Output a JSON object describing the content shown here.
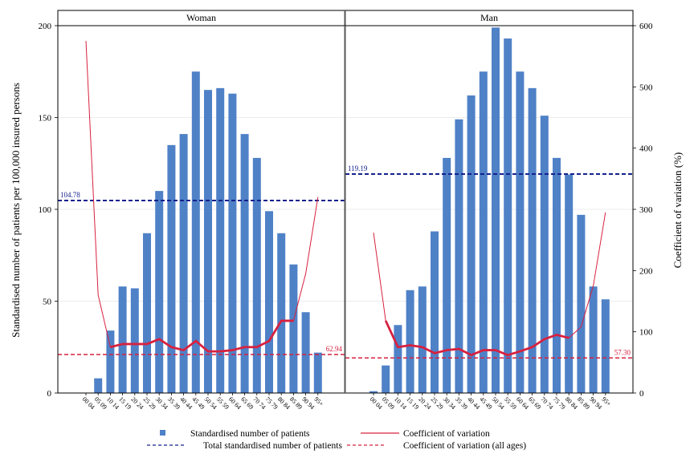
{
  "chart_data": {
    "type": "bar",
    "y_left": {
      "label": "Standardised number of patients per 100,000 insured persons",
      "lim": [
        0,
        200
      ],
      "ticks": [
        0,
        50,
        100,
        150,
        200
      ]
    },
    "y_right": {
      "label": "Coefficient of variation (%)",
      "lim": [
        0,
        600
      ],
      "ticks": [
        0,
        100,
        200,
        300,
        400,
        500,
        600
      ]
    },
    "categories": [
      "00-04",
      "05-09",
      "10-14",
      "15-19",
      "20-24",
      "25-29",
      "30-34",
      "35-39",
      "40-44",
      "45-49",
      "50-54",
      "55-59",
      "60-64",
      "65-69",
      "70-74",
      "75-79",
      "80-84",
      "85-89",
      "90-94",
      "95+"
    ],
    "panels": [
      {
        "name": "Woman",
        "bars": [
          0,
          8,
          34,
          58,
          57,
          87,
          110,
          135,
          141,
          175,
          165,
          166,
          163,
          141,
          128,
          99,
          87,
          70,
          44,
          22
        ],
        "cv_thin": [
          575,
          160,
          75,
          80,
          80,
          80,
          88,
          75,
          70,
          85,
          68,
          68,
          70,
          75,
          75,
          85,
          118,
          118,
          195,
          320
        ],
        "cv_thick_from": 2,
        "cv_thick_to": 17,
        "total_ref": 104.78,
        "total_ref_label": "104.78",
        "cv_all_ages": 62.94,
        "cv_all_ages_label": "62.94"
      },
      {
        "name": "Man",
        "bars": [
          1,
          15,
          37,
          56,
          58,
          88,
          128,
          149,
          162,
          175,
          199,
          193,
          175,
          166,
          151,
          128,
          119,
          97,
          58,
          51
        ],
        "cv_thin": [
          262,
          118,
          75,
          78,
          75,
          65,
          70,
          72,
          62,
          70,
          70,
          62,
          68,
          75,
          88,
          95,
          90,
          108,
          175,
          295
        ],
        "cv_thick_from": 1,
        "cv_thick_to": 16,
        "total_ref": 119.19,
        "total_ref_label": "119.19",
        "cv_all_ages": 57.3,
        "cv_all_ages_label": "57.30"
      }
    ],
    "legend": [
      {
        "key": "bars",
        "label": "Standardised number of patients",
        "color": "#4f81c7"
      },
      {
        "key": "cv",
        "label": "Coefficient of variation",
        "color": "#d7213f"
      },
      {
        "key": "total",
        "label": "Total standardised number of patients",
        "color": "#14208c"
      },
      {
        "key": "cv_all",
        "label": "Coefficient of variation (all ages)",
        "color": "#d7213f"
      }
    ],
    "colors": {
      "bar": "#4f81c7",
      "cv": "#d7213f",
      "total_ref": "#14208c"
    }
  }
}
